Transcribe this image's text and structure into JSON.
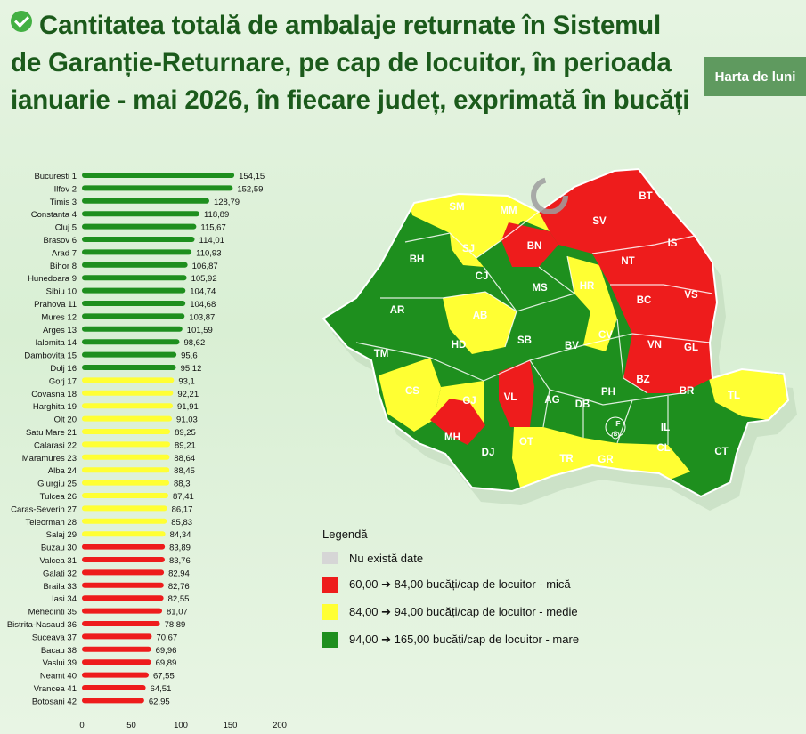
{
  "header": {
    "title": "Cantitatea totală de ambalaje returnate în Sistemul de Garanție-Returnare, pe cap de locuitor, în perioada ianuarie - mai 2026, în fiecare județ, exprimată în bucăți",
    "map_button": "Harta de luni",
    "check_icon": "check-circle-icon"
  },
  "colors": {
    "green": "#1e8f1e",
    "yellow": "#ffff33",
    "red": "#ee1c1c",
    "nodata": "#cfd6cf"
  },
  "chart_data": {
    "type": "bar",
    "orientation": "horizontal",
    "categories": [
      "Bucuresti 1",
      "Ilfov 2",
      "Timis 3",
      "Constanta 4",
      "Cluj 5",
      "Brasov 6",
      "Arad 7",
      "Bihor 8",
      "Hunedoara 9",
      "Sibiu 10",
      "Prahova 11",
      "Mures 12",
      "Arges 13",
      "Ialomita 14",
      "Dambovita 15",
      "Dolj 16",
      "Gorj 17",
      "Covasna 18",
      "Harghita 19",
      "Olt 20",
      "Satu Mare 21",
      "Calarasi 22",
      "Maramures 23",
      "Alba 24",
      "Giurgiu 25",
      "Tulcea 26",
      "Caras-Severin 27",
      "Teleorman 28",
      "Salaj 29",
      "Buzau 30",
      "Valcea 31",
      "Galati 32",
      "Braila 33",
      "Iasi 34",
      "Mehedinti 35",
      "Bistrita-Nasaud 36",
      "Suceava 37",
      "Bacau 38",
      "Vaslui 39",
      "Neamt 40",
      "Vrancea 41",
      "Botosani 42"
    ],
    "values": [
      154.15,
      152.59,
      128.79,
      118.89,
      115.67,
      114.01,
      110.93,
      106.87,
      105.92,
      104.74,
      104.68,
      103.87,
      101.59,
      98.62,
      95.6,
      95.12,
      93.1,
      92.21,
      91.91,
      91.03,
      89.25,
      89.21,
      88.64,
      88.45,
      88.3,
      87.41,
      86.17,
      85.83,
      84.34,
      83.89,
      83.76,
      82.94,
      82.76,
      82.55,
      81.07,
      78.89,
      70.67,
      69.96,
      69.89,
      67.55,
      64.51,
      62.95
    ],
    "value_labels": [
      "154,15",
      "152,59",
      "128,79",
      "118,89",
      "115,67",
      "114,01",
      "110,93",
      "106,87",
      "105,92",
      "104,74",
      "104,68",
      "103,87",
      "101,59",
      "98,62",
      "95,6",
      "95,12",
      "93,1",
      "92,21",
      "91,91",
      "91,03",
      "89,25",
      "89,21",
      "88,64",
      "88,45",
      "88,3",
      "87,41",
      "86,17",
      "85,83",
      "84,34",
      "83,89",
      "83,76",
      "82,94",
      "82,76",
      "82,55",
      "81,07",
      "78,89",
      "70,67",
      "69,96",
      "69,89",
      "67,55",
      "64,51",
      "62,95"
    ],
    "xlim": [
      0,
      200
    ],
    "xticks": [
      0,
      50,
      100,
      150,
      200
    ],
    "color_rule": [
      {
        "min": 94,
        "color": "#1e8f1e"
      },
      {
        "min": 84,
        "color": "#ffff33"
      },
      {
        "min": 0,
        "color": "#ee1c1c"
      }
    ]
  },
  "map": {
    "labels": [
      {
        "code": "SM",
        "class": "yellow"
      },
      {
        "code": "MM",
        "class": "yellow"
      },
      {
        "code": "BT",
        "class": "red"
      },
      {
        "code": "SV",
        "class": "red"
      },
      {
        "code": "BH",
        "class": "green"
      },
      {
        "code": "SJ",
        "class": "yellow"
      },
      {
        "code": "BN",
        "class": "red"
      },
      {
        "code": "IS",
        "class": "red"
      },
      {
        "code": "CJ",
        "class": "green"
      },
      {
        "code": "NT",
        "class": "red"
      },
      {
        "code": "MS",
        "class": "green"
      },
      {
        "code": "HR",
        "class": "yellow"
      },
      {
        "code": "VS",
        "class": "red"
      },
      {
        "code": "AR",
        "class": "green"
      },
      {
        "code": "AB",
        "class": "yellow"
      },
      {
        "code": "BC",
        "class": "red"
      },
      {
        "code": "HD",
        "class": "green"
      },
      {
        "code": "SB",
        "class": "green"
      },
      {
        "code": "CV",
        "class": "yellow"
      },
      {
        "code": "BV",
        "class": "green"
      },
      {
        "code": "VN",
        "class": "red"
      },
      {
        "code": "GL",
        "class": "red"
      },
      {
        "code": "TM",
        "class": "green"
      },
      {
        "code": "CS",
        "class": "yellow"
      },
      {
        "code": "GJ",
        "class": "yellow"
      },
      {
        "code": "VL",
        "class": "red"
      },
      {
        "code": "AG",
        "class": "green"
      },
      {
        "code": "DB",
        "class": "green"
      },
      {
        "code": "PH",
        "class": "green"
      },
      {
        "code": "BZ",
        "class": "red"
      },
      {
        "code": "BR",
        "class": "red"
      },
      {
        "code": "TL",
        "class": "yellow"
      },
      {
        "code": "IF",
        "class": "green"
      },
      {
        "code": "B",
        "class": "green"
      },
      {
        "code": "IL",
        "class": "green"
      },
      {
        "code": "MH",
        "class": "red"
      },
      {
        "code": "DJ",
        "class": "green"
      },
      {
        "code": "OT",
        "class": "yellow"
      },
      {
        "code": "TR",
        "class": "yellow"
      },
      {
        "code": "GR",
        "class": "yellow"
      },
      {
        "code": "CL",
        "class": "yellow"
      },
      {
        "code": "CT",
        "class": "green"
      }
    ]
  },
  "legend": {
    "title": "Legendă",
    "items": [
      {
        "label": "Nu există date",
        "color": "#d6d6d6"
      },
      {
        "label": "60,00 ➔ 84,00 bucăți/cap de locuitor - mică",
        "color": "#ee1c1c"
      },
      {
        "label": "84,00 ➔ 94,00 bucăți/cap de locuitor - medie",
        "color": "#ffff33"
      },
      {
        "label": "94,00 ➔ 165,00 bucăți/cap de locuitor - mare",
        "color": "#1e8f1e"
      }
    ]
  }
}
